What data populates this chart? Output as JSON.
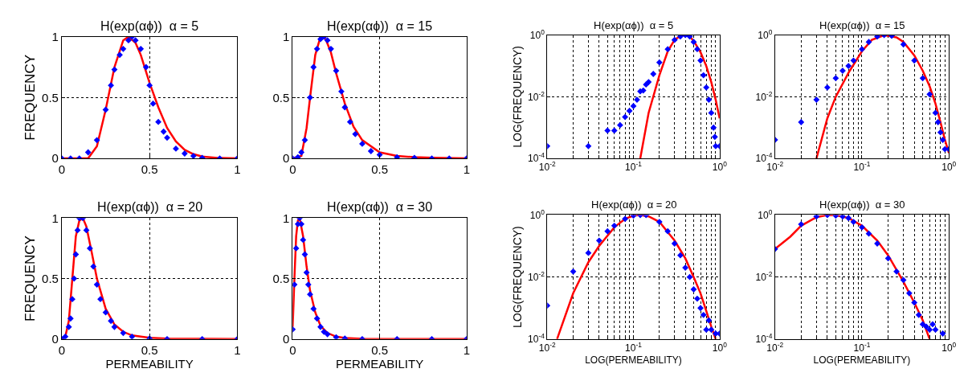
{
  "chart_data": [
    {
      "type": "scatter",
      "title": "H(exp(αϕ))  α = 5",
      "ylabel": "FREQUENCY",
      "xlim": [
        0,
        1
      ],
      "ylim": [
        0,
        1
      ],
      "xticks": [
        0,
        0.5,
        1
      ],
      "yticks": [
        0,
        0.5,
        1
      ],
      "grid": true,
      "series": [
        {
          "marker": "diamond",
          "color": "#0000ff",
          "x": [
            0,
            0.05,
            0.1,
            0.15,
            0.2,
            0.25,
            0.28,
            0.3,
            0.33,
            0.35,
            0.38,
            0.4,
            0.42,
            0.45,
            0.48,
            0.5,
            0.52,
            0.55,
            0.58,
            0.6,
            0.65,
            0.7,
            0.75,
            0.8,
            0.9,
            1
          ],
          "values": [
            0,
            0,
            0,
            0.05,
            0.15,
            0.4,
            0.6,
            0.73,
            0.85,
            0.9,
            0.97,
            1,
            0.97,
            0.9,
            0.75,
            0.6,
            0.45,
            0.3,
            0.22,
            0.17,
            0.08,
            0.04,
            0.02,
            0.005,
            0,
            0
          ]
        },
        {
          "type": "line",
          "marker": "none",
          "color": "#ff0000",
          "x": [
            0,
            0.15,
            0.2,
            0.25,
            0.3,
            0.35,
            0.38,
            0.42,
            0.45,
            0.5,
            0.55,
            0.6,
            0.65,
            0.7,
            0.75,
            0.8,
            0.9,
            1
          ],
          "values": [
            0,
            0,
            0.1,
            0.4,
            0.75,
            0.97,
            1,
            0.95,
            0.85,
            0.62,
            0.42,
            0.25,
            0.14,
            0.07,
            0.035,
            0.015,
            0.003,
            0
          ]
        }
      ]
    },
    {
      "type": "scatter",
      "title": "H(exp(αϕ))  α = 15",
      "xlim": [
        0,
        1
      ],
      "ylim": [
        0,
        1
      ],
      "xticks": [
        0,
        0.5,
        1
      ],
      "yticks": [
        0,
        0.5,
        1
      ],
      "grid": true,
      "series": [
        {
          "marker": "diamond",
          "color": "#0000ff",
          "x": [
            0,
            0.03,
            0.05,
            0.07,
            0.1,
            0.12,
            0.14,
            0.16,
            0.18,
            0.2,
            0.22,
            0.25,
            0.28,
            0.3,
            0.33,
            0.36,
            0.4,
            0.45,
            0.5,
            0.6,
            0.7,
            0.8,
            0.9,
            1
          ],
          "values": [
            0,
            0.01,
            0.05,
            0.15,
            0.5,
            0.75,
            0.9,
            0.98,
            1,
            0.97,
            0.9,
            0.72,
            0.55,
            0.42,
            0.3,
            0.2,
            0.12,
            0.06,
            0.03,
            0.01,
            0.005,
            0,
            0,
            0
          ]
        },
        {
          "type": "line",
          "marker": "none",
          "color": "#ff0000",
          "x": [
            0,
            0.05,
            0.08,
            0.1,
            0.13,
            0.16,
            0.19,
            0.22,
            0.25,
            0.3,
            0.35,
            0.4,
            0.5,
            0.6,
            0.7,
            0.8,
            1
          ],
          "values": [
            0,
            0.02,
            0.25,
            0.5,
            0.85,
            1,
            0.98,
            0.87,
            0.7,
            0.45,
            0.26,
            0.15,
            0.05,
            0.02,
            0.01,
            0.005,
            0
          ]
        }
      ]
    },
    {
      "type": "scatter",
      "title": "H(exp(αϕ))  α = 5",
      "ylabel": "LOG(FREQUENCY)",
      "log": "xy",
      "xlim": [
        0.01,
        1
      ],
      "ylim": [
        0.0001,
        1
      ],
      "grid": true,
      "xticks": [
        {
          "value": 0.01,
          "label": "10$^{-2}$"
        },
        {
          "value": 0.02,
          "label": null
        },
        {
          "value": 0.03,
          "label": null
        },
        {
          "value": 0.04,
          "label": null
        },
        {
          "value": 0.05,
          "label": null
        },
        {
          "value": 0.06,
          "label": null
        },
        {
          "value": 0.07,
          "label": null
        },
        {
          "value": 0.08,
          "label": null
        },
        {
          "value": 0.09,
          "label": null
        },
        {
          "value": 0.1,
          "label": "10$^{-1}$"
        },
        {
          "value": 0.2,
          "label": null
        },
        {
          "value": 0.3,
          "label": null
        },
        {
          "value": 0.4,
          "label": null
        },
        {
          "value": 0.5,
          "label": null
        },
        {
          "value": 0.6,
          "label": null
        },
        {
          "value": 0.7,
          "label": null
        },
        {
          "value": 0.8,
          "label": null
        },
        {
          "value": 0.9,
          "label": null
        },
        {
          "value": 1,
          "label": "10$^{0}$"
        }
      ],
      "yticks": [
        {
          "value": 0.0001,
          "label": "10$^{-4}$"
        },
        {
          "value": 0.01,
          "label": "10$^{-2}$"
        },
        {
          "value": 1,
          "label": "10$^{0}$"
        }
      ],
      "series": [
        {
          "marker": "diamond",
          "color": "#0000ff",
          "x": [
            0.01,
            0.03,
            0.05,
            0.06,
            0.07,
            0.08,
            0.09,
            0.1,
            0.11,
            0.12,
            0.13,
            0.14,
            0.15,
            0.17,
            0.2,
            0.25,
            0.3,
            0.35,
            0.4,
            0.45,
            0.5,
            0.55,
            0.6,
            0.65,
            0.7,
            0.75,
            0.8,
            0.85,
            0.88,
            0.9,
            1
          ],
          "values": [
            0.00025,
            0.00025,
            0.0008,
            0.0008,
            0.0012,
            0.0022,
            0.0035,
            0.005,
            0.008,
            0.015,
            0.016,
            0.025,
            0.03,
            0.055,
            0.13,
            0.35,
            0.7,
            0.9,
            1,
            0.9,
            0.6,
            0.35,
            0.15,
            0.05,
            0.02,
            0.008,
            0.003,
            0.001,
            0.0005,
            0.00025,
            0.00025
          ]
        },
        {
          "type": "line",
          "marker": "none",
          "color": "#ff0000",
          "x": [
            0.12,
            0.15,
            0.2,
            0.25,
            0.3,
            0.35,
            0.4,
            0.45,
            0.5,
            0.6,
            0.7,
            0.8,
            0.9,
            1
          ],
          "values": [
            0.0001,
            0.003,
            0.05,
            0.3,
            0.7,
            0.95,
            1,
            0.9,
            0.65,
            0.28,
            0.1,
            0.03,
            0.008,
            0.002
          ]
        }
      ]
    },
    {
      "type": "scatter",
      "title": "H(exp(αϕ))  α = 15",
      "log": "xy",
      "xlim": [
        0.01,
        1
      ],
      "ylim": [
        0.0001,
        1
      ],
      "grid": true,
      "xticks": [
        {
          "value": 0.01,
          "label": "10$^{-2}$"
        },
        {
          "value": 0.02,
          "label": null
        },
        {
          "value": 0.03,
          "label": null
        },
        {
          "value": 0.04,
          "label": null
        },
        {
          "value": 0.05,
          "label": null
        },
        {
          "value": 0.06,
          "label": null
        },
        {
          "value": 0.07,
          "label": null
        },
        {
          "value": 0.08,
          "label": null
        },
        {
          "value": 0.09,
          "label": null
        },
        {
          "value": 0.1,
          "label": "10$^{-1}$"
        },
        {
          "value": 0.2,
          "label": null
        },
        {
          "value": 0.3,
          "label": null
        },
        {
          "value": 0.4,
          "label": null
        },
        {
          "value": 0.5,
          "label": null
        },
        {
          "value": 0.6,
          "label": null
        },
        {
          "value": 0.7,
          "label": null
        },
        {
          "value": 0.8,
          "label": null
        },
        {
          "value": 0.9,
          "label": null
        },
        {
          "value": 1,
          "label": "10$^{0}$"
        }
      ],
      "yticks": [
        {
          "value": 0.0001,
          "label": "10$^{-4}$"
        },
        {
          "value": 0.01,
          "label": "10$^{-2}$"
        },
        {
          "value": 1,
          "label": "10$^{0}$"
        }
      ],
      "series": [
        {
          "marker": "diamond",
          "color": "#0000ff",
          "x": [
            0.01,
            0.02,
            0.03,
            0.04,
            0.05,
            0.06,
            0.07,
            0.08,
            0.1,
            0.12,
            0.15,
            0.18,
            0.22,
            0.3,
            0.4,
            0.5,
            0.6,
            0.7,
            0.75,
            0.8,
            0.85,
            0.9,
            1
          ],
          "values": [
            0.0004,
            0.0015,
            0.008,
            0.02,
            0.04,
            0.07,
            0.1,
            0.15,
            0.35,
            0.6,
            0.9,
            1,
            0.95,
            0.5,
            0.15,
            0.04,
            0.012,
            0.003,
            0.0015,
            0.0007,
            0.0004,
            0.0002,
            0.0002
          ]
        },
        {
          "type": "line",
          "marker": "none",
          "color": "#ff0000",
          "x": [
            0.03,
            0.04,
            0.05,
            0.07,
            0.1,
            0.13,
            0.18,
            0.25,
            0.3,
            0.4,
            0.5,
            0.6,
            0.7,
            0.8,
            0.9,
            1
          ],
          "values": [
            0.0001,
            0.002,
            0.01,
            0.06,
            0.3,
            0.7,
            1,
            0.85,
            0.6,
            0.22,
            0.07,
            0.022,
            0.006,
            0.0015,
            0.0004,
            0.00015
          ]
        }
      ]
    },
    {
      "type": "scatter",
      "title": "H(exp(αϕ))  α = 20",
      "xlabel": "PERMEABILITY",
      "ylabel": "FREQUENCY",
      "xlim": [
        0,
        1
      ],
      "ylim": [
        0,
        1
      ],
      "xticks": [
        0,
        0.5,
        1
      ],
      "yticks": [
        0,
        0.5,
        1
      ],
      "grid": true,
      "series": [
        {
          "marker": "diamond",
          "color": "#0000ff",
          "x": [
            0,
            0.02,
            0.04,
            0.05,
            0.06,
            0.07,
            0.08,
            0.09,
            0.1,
            0.12,
            0.14,
            0.16,
            0.18,
            0.2,
            0.22,
            0.25,
            0.28,
            0.3,
            0.35,
            0.4,
            0.5,
            0.6,
            0.8,
            1
          ],
          "values": [
            0,
            0.02,
            0.1,
            0.17,
            0.33,
            0.5,
            0.7,
            0.9,
            1,
            1,
            0.9,
            0.75,
            0.6,
            0.45,
            0.33,
            0.22,
            0.15,
            0.1,
            0.05,
            0.02,
            0.005,
            0,
            0,
            0
          ]
        },
        {
          "type": "line",
          "marker": "none",
          "color": "#ff0000",
          "x": [
            0,
            0.02,
            0.04,
            0.06,
            0.08,
            0.1,
            0.12,
            0.14,
            0.17,
            0.2,
            0.25,
            0.3,
            0.35,
            0.4,
            0.5,
            0.6,
            1
          ],
          "values": [
            0,
            0.02,
            0.15,
            0.5,
            0.85,
            0.98,
            1,
            0.93,
            0.72,
            0.5,
            0.25,
            0.12,
            0.06,
            0.03,
            0.01,
            0.003,
            0
          ]
        }
      ]
    },
    {
      "type": "scatter",
      "title": "H(exp(αϕ))  α = 30",
      "xlabel": "PERMEABILITY",
      "xlim": [
        0,
        1
      ],
      "ylim": [
        0,
        1
      ],
      "xticks": [
        0,
        0.5,
        1
      ],
      "yticks": [
        0,
        0.5,
        1
      ],
      "grid": true,
      "series": [
        {
          "marker": "diamond",
          "color": "#0000ff",
          "x": [
            0,
            0.01,
            0.02,
            0.03,
            0.04,
            0.05,
            0.06,
            0.07,
            0.08,
            0.09,
            0.1,
            0.12,
            0.14,
            0.16,
            0.18,
            0.2,
            0.25,
            0.3,
            0.4,
            0.6,
            0.8,
            1
          ],
          "values": [
            0.08,
            0.45,
            0.75,
            0.95,
            1,
            0.95,
            0.82,
            0.7,
            0.55,
            0.45,
            0.37,
            0.25,
            0.17,
            0.1,
            0.06,
            0.04,
            0.015,
            0.005,
            0,
            0,
            0,
            0
          ]
        },
        {
          "type": "line",
          "marker": "none",
          "color": "#ff0000",
          "x": [
            0,
            0.01,
            0.02,
            0.03,
            0.04,
            0.06,
            0.08,
            0.1,
            0.13,
            0.16,
            0.2,
            0.25,
            0.3,
            0.4,
            1
          ],
          "values": [
            0.1,
            0.5,
            0.85,
            0.98,
            1,
            0.85,
            0.6,
            0.4,
            0.22,
            0.11,
            0.05,
            0.02,
            0.008,
            0.002,
            0
          ]
        }
      ]
    },
    {
      "type": "scatter",
      "title": "H(exp(αϕ))  α = 20",
      "xlabel": "LOG(PERMEABILITY)",
      "ylabel": "LOG(FREQUENCY)",
      "log": "xy",
      "xlim": [
        0.01,
        1
      ],
      "ylim": [
        0.0001,
        1
      ],
      "grid": true,
      "xticks": [
        {
          "value": 0.01,
          "label": "10$^{-2}$"
        },
        {
          "value": 0.02,
          "label": null
        },
        {
          "value": 0.03,
          "label": null
        },
        {
          "value": 0.04,
          "label": null
        },
        {
          "value": 0.05,
          "label": null
        },
        {
          "value": 0.06,
          "label": null
        },
        {
          "value": 0.07,
          "label": null
        },
        {
          "value": 0.08,
          "label": null
        },
        {
          "value": 0.09,
          "label": null
        },
        {
          "value": 0.1,
          "label": "10$^{-1}$"
        },
        {
          "value": 0.2,
          "label": null
        },
        {
          "value": 0.3,
          "label": null
        },
        {
          "value": 0.4,
          "label": null
        },
        {
          "value": 0.5,
          "label": null
        },
        {
          "value": 0.6,
          "label": null
        },
        {
          "value": 0.7,
          "label": null
        },
        {
          "value": 0.8,
          "label": null
        },
        {
          "value": 0.9,
          "label": null
        },
        {
          "value": 1,
          "label": "10$^{0}$"
        }
      ],
      "yticks": [
        {
          "value": 0.0001,
          "label": "10$^{-4}$"
        },
        {
          "value": 0.01,
          "label": "10$^{-2}$"
        },
        {
          "value": 1,
          "label": "10$^{0}$"
        }
      ],
      "series": [
        {
          "marker": "diamond",
          "color": "#0000ff",
          "x": [
            0.01,
            0.02,
            0.03,
            0.04,
            0.05,
            0.06,
            0.08,
            0.1,
            0.12,
            0.14,
            0.2,
            0.25,
            0.3,
            0.35,
            0.4,
            0.45,
            0.5,
            0.55,
            0.6,
            0.65,
            0.7,
            0.75,
            0.8,
            0.9,
            1
          ],
          "values": [
            0.0012,
            0.015,
            0.06,
            0.15,
            0.3,
            0.45,
            0.75,
            0.95,
            1,
            1,
            0.6,
            0.3,
            0.12,
            0.05,
            0.02,
            0.01,
            0.004,
            0.002,
            0.001,
            0.0006,
            0.0002,
            0.0004,
            0.0002,
            0.00015,
            0.00015
          ]
        },
        {
          "type": "line",
          "marker": "none",
          "color": "#ff0000",
          "x": [
            0.013,
            0.02,
            0.03,
            0.04,
            0.06,
            0.08,
            0.1,
            0.12,
            0.15,
            0.2,
            0.3,
            0.4,
            0.5,
            0.6,
            0.7,
            0.8,
            0.9
          ],
          "values": [
            0.0001,
            0.003,
            0.03,
            0.1,
            0.4,
            0.75,
            0.95,
            1,
            0.9,
            0.6,
            0.15,
            0.04,
            0.01,
            0.003,
            0.0008,
            0.00025,
            0.0001
          ]
        }
      ]
    },
    {
      "type": "scatter",
      "title": "H(exp(αϕ))  α = 30",
      "xlabel": "LOG(PERMEABILITY)",
      "log": "xy",
      "xlim": [
        0.01,
        1
      ],
      "ylim": [
        0.0001,
        1
      ],
      "grid": true,
      "xticks": [
        {
          "value": 0.01,
          "label": "10$^{-2}$"
        },
        {
          "value": 0.02,
          "label": null
        },
        {
          "value": 0.03,
          "label": null
        },
        {
          "value": 0.04,
          "label": null
        },
        {
          "value": 0.05,
          "label": null
        },
        {
          "value": 0.06,
          "label": null
        },
        {
          "value": 0.07,
          "label": null
        },
        {
          "value": 0.08,
          "label": null
        },
        {
          "value": 0.09,
          "label": null
        },
        {
          "value": 0.1,
          "label": "10$^{-1}$"
        },
        {
          "value": 0.2,
          "label": null
        },
        {
          "value": 0.3,
          "label": null
        },
        {
          "value": 0.4,
          "label": null
        },
        {
          "value": 0.5,
          "label": null
        },
        {
          "value": 0.6,
          "label": null
        },
        {
          "value": 0.7,
          "label": null
        },
        {
          "value": 0.8,
          "label": null
        },
        {
          "value": 0.9,
          "label": null
        },
        {
          "value": 1,
          "label": "10$^{0}$"
        }
      ],
      "yticks": [
        {
          "value": 0.0001,
          "label": "10$^{-4}$"
        },
        {
          "value": 0.01,
          "label": "10$^{-2}$"
        },
        {
          "value": 1,
          "label": "10$^{0}$"
        }
      ],
      "series": [
        {
          "marker": "diamond",
          "color": "#0000ff",
          "x": [
            0.01,
            0.02,
            0.03,
            0.04,
            0.05,
            0.06,
            0.07,
            0.08,
            0.1,
            0.12,
            0.15,
            0.2,
            0.25,
            0.3,
            0.35,
            0.4,
            0.45,
            0.5,
            0.55,
            0.6,
            0.65,
            0.7,
            0.85
          ],
          "values": [
            0.08,
            0.5,
            0.9,
            1,
            0.95,
            0.9,
            0.8,
            0.6,
            0.4,
            0.25,
            0.12,
            0.04,
            0.015,
            0.008,
            0.003,
            0.0015,
            0.0006,
            0.0003,
            0.00025,
            0.0002,
            0.0003,
            0.0002,
            0.00015
          ]
        },
        {
          "type": "line",
          "marker": "none",
          "color": "#ff0000",
          "x": [
            0.01,
            0.015,
            0.02,
            0.03,
            0.04,
            0.05,
            0.07,
            0.1,
            0.15,
            0.2,
            0.3,
            0.4,
            0.5,
            0.6
          ],
          "values": [
            0.08,
            0.2,
            0.45,
            0.85,
            1,
            0.98,
            0.8,
            0.45,
            0.15,
            0.05,
            0.007,
            0.0015,
            0.0004,
            0.0001
          ]
        }
      ]
    }
  ]
}
